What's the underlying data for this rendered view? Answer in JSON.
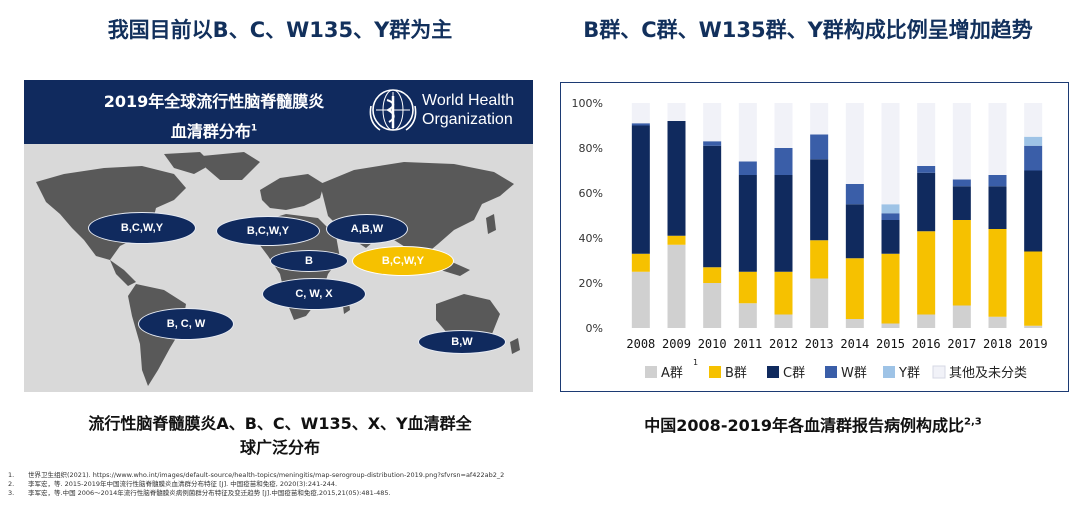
{
  "headings": {
    "left": "我国目前以B、C、W135、Y群为主",
    "right": "B群、C群、W135群、Y群构成比例呈增加趋势"
  },
  "map": {
    "title_line1": "2019年全球流行性脑脊髓膜炎",
    "title_line2": "血清群分布",
    "title_sup": "1",
    "who_line1": "World Health",
    "who_line2": "Organization",
    "regions": [
      {
        "label": "B,C,W,Y",
        "color": "#102a5e"
      },
      {
        "label": "B,C,W,Y",
        "color": "#102a5e"
      },
      {
        "label": "A,B,W",
        "color": "#102a5e"
      },
      {
        "label": "B",
        "color": "#102a5e"
      },
      {
        "label": "B,C,W,Y",
        "color": "#f6c100"
      },
      {
        "label": "C, W, X",
        "color": "#102a5e"
      },
      {
        "label": "B, C, W",
        "color": "#102a5e"
      },
      {
        "label": "B,W",
        "color": "#102a5e"
      }
    ],
    "caption_line1": "流行性脑脊髓膜炎A、B、C、W135、X、Y血清群全",
    "caption_line2": "球广泛分布"
  },
  "chart_caption": {
    "text": "中国2008-2019年各血清群报告病例构成比",
    "sup": "2,3"
  },
  "chart_data": {
    "type": "bar",
    "stacked": true,
    "categories": [
      "2008",
      "2009",
      "2010",
      "2011",
      "2012",
      "2013",
      "2014",
      "2015",
      "2016",
      "2017",
      "2018",
      "2019"
    ],
    "series": [
      {
        "name": "A群",
        "color": "#d0d0d0",
        "values": [
          25,
          37,
          20,
          11,
          6,
          22,
          4,
          2,
          6,
          10,
          5,
          1
        ]
      },
      {
        "name": "B群",
        "color": "#f6c100",
        "values": [
          8,
          4,
          7,
          14,
          19,
          17,
          27,
          31,
          37,
          38,
          39,
          33
        ]
      },
      {
        "name": "C群",
        "color": "#102a5e",
        "values": [
          57,
          51,
          54,
          43,
          43,
          36,
          24,
          15,
          26,
          15,
          19,
          36
        ]
      },
      {
        "name": "W群",
        "color": "#3a5ea8",
        "values": [
          1,
          0,
          2,
          6,
          12,
          11,
          9,
          3,
          3,
          3,
          5,
          11
        ]
      },
      {
        "name": "Y群",
        "color": "#9ec3e6",
        "values": [
          0,
          0,
          0,
          0,
          0,
          0,
          0,
          4,
          0,
          0,
          0,
          4
        ]
      },
      {
        "name": "其他及未分类",
        "color": "#f1f2f8",
        "values": [
          9,
          8,
          17,
          26,
          20,
          14,
          36,
          45,
          28,
          34,
          32,
          15
        ]
      }
    ],
    "y_ticks": [
      "0%",
      "20%",
      "40%",
      "60%",
      "80%",
      "100%"
    ],
    "ylim": [
      0,
      100
    ],
    "legend_position": "bottom",
    "legend_sup": "1"
  },
  "references": [
    {
      "num": "1.",
      "text": "世界卫生组织(2021). https://www.who.int/images/default-source/health-topics/meningitis/map-serogroup-distribution-2019.png?sfvrsn=af422ab2_2"
    },
    {
      "num": "2.",
      "text": "李军宏，等. 2015-2019年中国流行性脑脊髓膜炎血清群分布特征 [J]. 中国疫苗和免疫, 2020(3):241-244."
    },
    {
      "num": "3.",
      "text": "李军宏，等.中国 2006～2014年流行性脑脊髓膜炎病例菌群分布特征及变迁趋势 [J].中国疫苗和免疫,2015,21(05):481-485."
    }
  ]
}
